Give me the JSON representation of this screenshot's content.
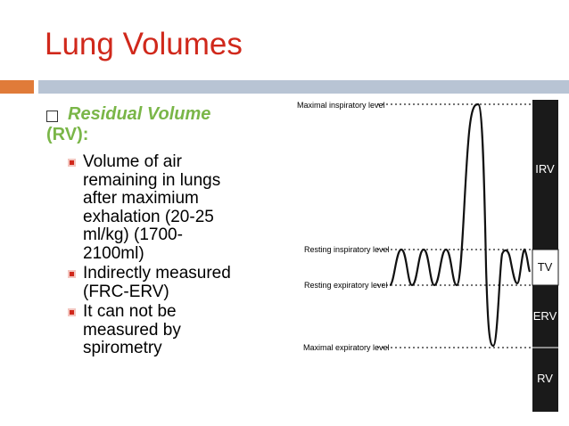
{
  "header": {
    "title": "Lung Volumes"
  },
  "content": {
    "heading_lines": [
      "Residual Volume",
      "(RV):"
    ],
    "bullets": [
      {
        "lines": [
          "Volume of air",
          "remaining in lungs",
          "after maximium",
          "exhalation (20-25",
          "ml/kg) (1700-",
          "2100ml)"
        ]
      },
      {
        "lines": [
          "Indirectly measured",
          "(FRC-ERV)"
        ]
      },
      {
        "lines": [
          "It can not be",
          "measured by",
          "spirometry"
        ]
      }
    ]
  },
  "diagram": {
    "levels": [
      "Maximal inspiratory level",
      "Resting inspiratory level",
      "Resting expiratory level",
      "Maximal expiratory level"
    ],
    "volumes": [
      "IRV",
      "TV",
      "ERV",
      "RV"
    ]
  }
}
